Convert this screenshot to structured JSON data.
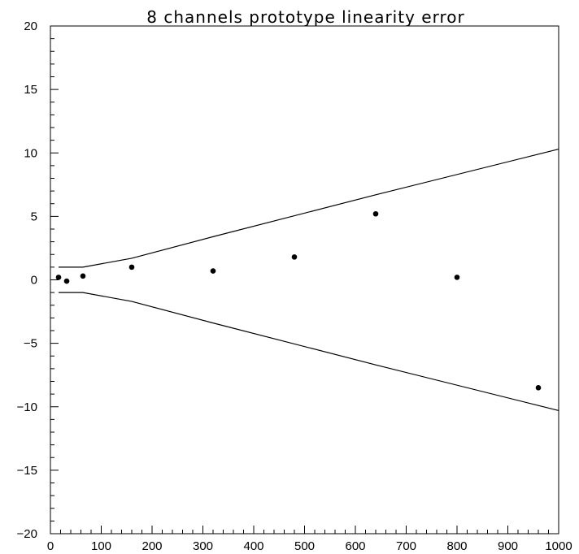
{
  "chart_data": {
    "type": "scatter",
    "title": "8 channels prototype linearity error",
    "xlabel": "",
    "ylabel": "",
    "xlim": [
      0,
      1000
    ],
    "ylim": [
      -20,
      20
    ],
    "x_ticks": [
      0,
      100,
      200,
      300,
      400,
      500,
      600,
      700,
      800,
      900,
      1000
    ],
    "y_ticks": [
      -20,
      -15,
      -10,
      -5,
      0,
      5,
      10,
      15,
      20
    ],
    "x_tick_labels": [
      "0",
      "100",
      "200",
      "300",
      "400",
      "500",
      "600",
      "700",
      "800",
      "900",
      "1000"
    ],
    "y_tick_labels": [
      "−20",
      "−15",
      "−10",
      "−5",
      "0",
      "5",
      "10",
      "15",
      "20"
    ],
    "grid": false,
    "legend": "none",
    "points": {
      "x": [
        16,
        32,
        64,
        160,
        320,
        480,
        640,
        800,
        960
      ],
      "y": [
        0.2,
        -0.1,
        0.3,
        1.0,
        0.7,
        1.8,
        5.2,
        0.2,
        -8.5
      ]
    },
    "upper_bound": {
      "x": [
        16,
        64,
        160,
        320,
        640,
        960,
        1000
      ],
      "y": [
        1.0,
        1.0,
        1.7,
        3.4,
        6.7,
        9.9,
        10.3
      ]
    },
    "lower_bound": {
      "x": [
        16,
        64,
        160,
        320,
        640,
        960,
        1000
      ],
      "y": [
        -1.0,
        -1.0,
        -1.7,
        -3.4,
        -6.7,
        -9.9,
        -10.3
      ]
    }
  }
}
